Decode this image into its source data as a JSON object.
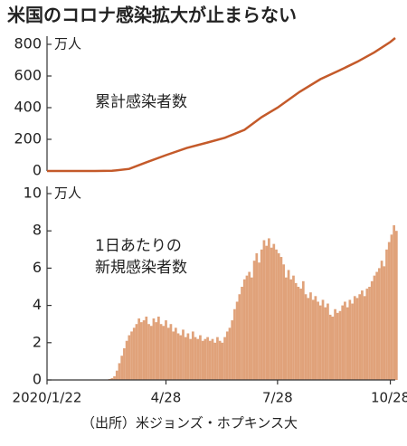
{
  "title": "米国のコロナ感染拡大が止まらない",
  "source": "（出所）米ジョンズ・ホプキンス大",
  "chart_data": [
    {
      "type": "line",
      "annotation": "累計感染者数",
      "unit": "万人",
      "color": "#c45a2a",
      "xlim": [
        "2020-01-22",
        "2020-11-01"
      ],
      "ylim": [
        0,
        800
      ],
      "yticks": [
        0,
        200,
        400,
        600,
        800
      ],
      "x": [
        "2020-01-22",
        "2020-03-01",
        "2020-03-15",
        "2020-03-29",
        "2020-04-12",
        "2020-04-28",
        "2020-05-15",
        "2020-06-01",
        "2020-06-15",
        "2020-07-01",
        "2020-07-15",
        "2020-07-28",
        "2020-08-15",
        "2020-09-01",
        "2020-09-15",
        "2020-10-01",
        "2020-10-15",
        "2020-10-28",
        "2020-11-01"
      ],
      "values": [
        0,
        0,
        1,
        13,
        55,
        100,
        145,
        180,
        210,
        260,
        340,
        400,
        500,
        580,
        630,
        690,
        750,
        815,
        840
      ]
    },
    {
      "type": "bar",
      "annotation": [
        "1日あたりの",
        "新規感染者数"
      ],
      "unit": "万人",
      "color": "#e0a27a",
      "xlim": [
        "2020-01-22",
        "2020-11-01"
      ],
      "ylim": [
        0,
        10
      ],
      "yticks": [
        0,
        2,
        4,
        6,
        8,
        10
      ],
      "xticks": [
        {
          "value": "2020-01-22",
          "label": "2020/1/22"
        },
        {
          "value": "2020-04-28",
          "label": "4/28"
        },
        {
          "value": "2020-07-28",
          "label": "7/28"
        },
        {
          "value": "2020-10-28",
          "label": "10/28"
        }
      ],
      "x": [
        "2020-01-22",
        "2020-01-24",
        "2020-01-26",
        "2020-01-28",
        "2020-01-30",
        "2020-02-01",
        "2020-02-03",
        "2020-02-05",
        "2020-02-07",
        "2020-02-09",
        "2020-02-11",
        "2020-02-13",
        "2020-02-15",
        "2020-02-17",
        "2020-02-19",
        "2020-02-21",
        "2020-02-23",
        "2020-02-25",
        "2020-02-27",
        "2020-02-29",
        "2020-03-02",
        "2020-03-04",
        "2020-03-06",
        "2020-03-08",
        "2020-03-10",
        "2020-03-12",
        "2020-03-14",
        "2020-03-16",
        "2020-03-18",
        "2020-03-20",
        "2020-03-22",
        "2020-03-24",
        "2020-03-26",
        "2020-03-28",
        "2020-03-30",
        "2020-04-01",
        "2020-04-03",
        "2020-04-05",
        "2020-04-07",
        "2020-04-09",
        "2020-04-11",
        "2020-04-13",
        "2020-04-15",
        "2020-04-17",
        "2020-04-19",
        "2020-04-21",
        "2020-04-23",
        "2020-04-25",
        "2020-04-27",
        "2020-04-29",
        "2020-05-01",
        "2020-05-03",
        "2020-05-05",
        "2020-05-07",
        "2020-05-09",
        "2020-05-11",
        "2020-05-13",
        "2020-05-15",
        "2020-05-17",
        "2020-05-19",
        "2020-05-21",
        "2020-05-23",
        "2020-05-25",
        "2020-05-27",
        "2020-05-29",
        "2020-05-31",
        "2020-06-02",
        "2020-06-04",
        "2020-06-06",
        "2020-06-08",
        "2020-06-10",
        "2020-06-12",
        "2020-06-14",
        "2020-06-16",
        "2020-06-18",
        "2020-06-20",
        "2020-06-22",
        "2020-06-24",
        "2020-06-26",
        "2020-06-28",
        "2020-06-30",
        "2020-07-02",
        "2020-07-04",
        "2020-07-06",
        "2020-07-08",
        "2020-07-10",
        "2020-07-12",
        "2020-07-14",
        "2020-07-16",
        "2020-07-18",
        "2020-07-20",
        "2020-07-22",
        "2020-07-24",
        "2020-07-26",
        "2020-07-28",
        "2020-07-30",
        "2020-08-01",
        "2020-08-03",
        "2020-08-05",
        "2020-08-07",
        "2020-08-09",
        "2020-08-11",
        "2020-08-13",
        "2020-08-15",
        "2020-08-17",
        "2020-08-19",
        "2020-08-21",
        "2020-08-23",
        "2020-08-25",
        "2020-08-27",
        "2020-08-29",
        "2020-08-31",
        "2020-09-02",
        "2020-09-04",
        "2020-09-06",
        "2020-09-08",
        "2020-09-10",
        "2020-09-12",
        "2020-09-14",
        "2020-09-16",
        "2020-09-18",
        "2020-09-20",
        "2020-09-22",
        "2020-09-24",
        "2020-09-26",
        "2020-09-28",
        "2020-09-30",
        "2020-10-02",
        "2020-10-04",
        "2020-10-06",
        "2020-10-08",
        "2020-10-10",
        "2020-10-12",
        "2020-10-14",
        "2020-10-16",
        "2020-10-18",
        "2020-10-20",
        "2020-10-22",
        "2020-10-24",
        "2020-10-26",
        "2020-10-28",
        "2020-10-30",
        "2020-11-01"
      ],
      "values": [
        0,
        0,
        0,
        0,
        0,
        0,
        0,
        0,
        0,
        0,
        0,
        0,
        0,
        0,
        0,
        0,
        0,
        0,
        0,
        0,
        0,
        0,
        0,
        0,
        0.02,
        0.05,
        0.1,
        0.2,
        0.5,
        0.9,
        1.3,
        1.7,
        2.1,
        2.4,
        2.6,
        2.8,
        3.0,
        3.3,
        3.1,
        3.2,
        3.4,
        3.0,
        2.9,
        3.3,
        3.1,
        3.4,
        3.0,
        2.9,
        3.2,
        2.8,
        3.0,
        2.6,
        2.8,
        2.5,
        2.4,
        2.7,
        2.3,
        2.5,
        2.2,
        2.6,
        2.3,
        2.2,
        2.4,
        2.1,
        2.2,
        2.3,
        2.1,
        2.2,
        2.0,
        2.3,
        2.1,
        2.0,
        2.3,
        2.6,
        2.8,
        3.2,
        3.8,
        4.2,
        4.6,
        5.0,
        5.4,
        5.6,
        5.8,
        5.5,
        6.4,
        6.8,
        6.3,
        7.0,
        7.5,
        7.2,
        7.6,
        7.1,
        7.3,
        7.0,
        6.8,
        6.6,
        6.2,
        5.5,
        5.9,
        5.4,
        5.6,
        5.2,
        5.0,
        4.9,
        5.3,
        4.6,
        4.4,
        4.7,
        4.3,
        4.5,
        4.2,
        4.0,
        4.3,
        3.9,
        4.1,
        3.5,
        3.4,
        3.8,
        3.6,
        3.7,
        4.0,
        4.2,
        3.9,
        4.3,
        4.1,
        4.5,
        4.4,
        4.6,
        4.8,
        4.5,
        4.9,
        5.0,
        5.3,
        5.6,
        5.8,
        6.0,
        6.4,
        6.1,
        7.0,
        7.4,
        7.8,
        8.3,
        8.0
      ]
    }
  ]
}
